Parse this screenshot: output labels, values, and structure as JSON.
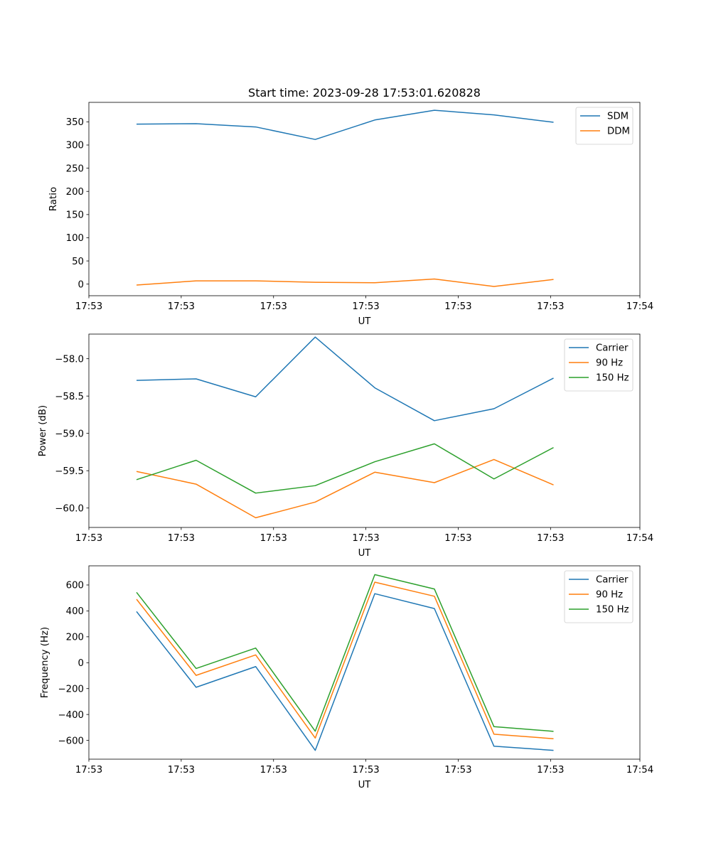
{
  "figure_title": "Start time: 2023-09-28 17:53:01.620828",
  "chart_data": [
    {
      "type": "line",
      "title": "Start time: 2023-09-28 17:53:01.620828",
      "xlabel": "UT",
      "ylabel": "Ratio",
      "x": [
        1,
        2,
        3,
        4,
        5,
        6,
        7,
        8
      ],
      "xlim": [
        0.2,
        9.45
      ],
      "ylim": [
        -25,
        392
      ],
      "xticks": [
        {
          "v": 0.2,
          "label": "17:53"
        },
        {
          "v": 1.75,
          "label": "17:53"
        },
        {
          "v": 3.3,
          "label": "17:53"
        },
        {
          "v": 4.85,
          "label": "17:53"
        },
        {
          "v": 6.4,
          "label": "17:53"
        },
        {
          "v": 7.95,
          "label": "17:53"
        },
        {
          "v": 9.45,
          "label": "17:54"
        }
      ],
      "yticks": [
        {
          "v": 0,
          "label": "0"
        },
        {
          "v": 50,
          "label": "50"
        },
        {
          "v": 100,
          "label": "100"
        },
        {
          "v": 150,
          "label": "150"
        },
        {
          "v": 200,
          "label": "200"
        },
        {
          "v": 250,
          "label": "250"
        },
        {
          "v": 300,
          "label": "300"
        },
        {
          "v": 350,
          "label": "350"
        }
      ],
      "legend_position": "top-right",
      "series": [
        {
          "name": "SDM",
          "color": "#1f77b4",
          "values": [
            345,
            346,
            339,
            312,
            354,
            375,
            365,
            349
          ]
        },
        {
          "name": "DDM",
          "color": "#ff7f0e",
          "values": [
            -2,
            7,
            7,
            4,
            3,
            11,
            -5,
            10
          ]
        }
      ]
    },
    {
      "type": "line",
      "title": "",
      "xlabel": "UT",
      "ylabel": "Power (dB)",
      "x": [
        1,
        2,
        3,
        4,
        5,
        6,
        7,
        8
      ],
      "xlim": [
        0.2,
        9.45
      ],
      "ylim": [
        -60.26,
        -57.67
      ],
      "xticks": [
        {
          "v": 0.2,
          "label": "17:53"
        },
        {
          "v": 1.75,
          "label": "17:53"
        },
        {
          "v": 3.3,
          "label": "17:53"
        },
        {
          "v": 4.85,
          "label": "17:53"
        },
        {
          "v": 6.4,
          "label": "17:53"
        },
        {
          "v": 7.95,
          "label": "17:53"
        },
        {
          "v": 9.45,
          "label": "17:54"
        }
      ],
      "yticks": [
        {
          "v": -60.0,
          "label": "−60.0"
        },
        {
          "v": -59.5,
          "label": "−59.5"
        },
        {
          "v": -59.0,
          "label": "−59.0"
        },
        {
          "v": -58.5,
          "label": "−58.5"
        },
        {
          "v": -58.0,
          "label": "−58.0"
        }
      ],
      "legend_position": "top-right",
      "series": [
        {
          "name": "Carrier",
          "color": "#1f77b4",
          "values": [
            -58.29,
            -58.27,
            -58.51,
            -57.71,
            -58.39,
            -58.83,
            -58.67,
            -58.26
          ]
        },
        {
          "name": "90 Hz",
          "color": "#ff7f0e",
          "values": [
            -59.51,
            -59.68,
            -60.13,
            -59.92,
            -59.52,
            -59.66,
            -59.35,
            -59.69
          ]
        },
        {
          "name": "150 Hz",
          "color": "#2ca02c",
          "values": [
            -59.62,
            -59.36,
            -59.8,
            -59.7,
            -59.38,
            -59.14,
            -59.61,
            -59.19
          ]
        }
      ]
    },
    {
      "type": "line",
      "title": "",
      "xlabel": "UT",
      "ylabel": "Frequency (Hz)",
      "x": [
        1,
        2,
        3,
        4,
        5,
        6,
        7,
        8
      ],
      "xlim": [
        0.2,
        9.45
      ],
      "ylim": [
        -745,
        748
      ],
      "xticks": [
        {
          "v": 0.2,
          "label": "17:53"
        },
        {
          "v": 1.75,
          "label": "17:53"
        },
        {
          "v": 3.3,
          "label": "17:53"
        },
        {
          "v": 4.85,
          "label": "17:53"
        },
        {
          "v": 6.4,
          "label": "17:53"
        },
        {
          "v": 7.95,
          "label": "17:53"
        },
        {
          "v": 9.45,
          "label": "17:54"
        }
      ],
      "yticks": [
        {
          "v": -600,
          "label": "−600"
        },
        {
          "v": -400,
          "label": "−400"
        },
        {
          "v": -200,
          "label": "−200"
        },
        {
          "v": 0,
          "label": "0"
        },
        {
          "v": 200,
          "label": "200"
        },
        {
          "v": 400,
          "label": "400"
        },
        {
          "v": 600,
          "label": "600"
        }
      ],
      "legend_position": "top-right",
      "series": [
        {
          "name": "Carrier",
          "color": "#1f77b4",
          "values": [
            395,
            -190,
            -30,
            -677,
            533,
            418,
            -645,
            -677
          ]
        },
        {
          "name": "90 Hz",
          "color": "#ff7f0e",
          "values": [
            490,
            -98,
            60,
            -582,
            622,
            513,
            -552,
            -587
          ]
        },
        {
          "name": "150 Hz",
          "color": "#2ca02c",
          "values": [
            543,
            -45,
            113,
            -529,
            680,
            569,
            -494,
            -530
          ]
        }
      ]
    }
  ]
}
